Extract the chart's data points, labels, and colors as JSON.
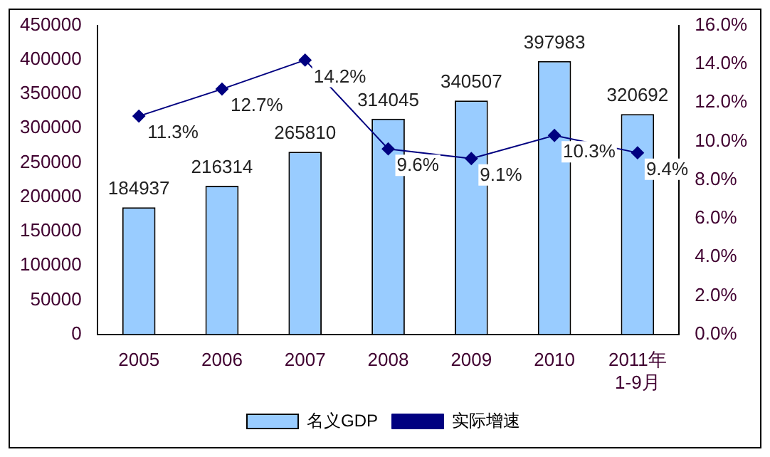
{
  "chart_data": {
    "type": "bar",
    "categories": [
      "2005",
      "2006",
      "2007",
      "2008",
      "2009",
      "2010",
      "2011年\n1-9月"
    ],
    "series": [
      {
        "name": "名义GDP",
        "color": "#99ccff",
        "values": [
          184937,
          216314,
          265810,
          314045,
          340507,
          397983,
          320692
        ]
      },
      {
        "name": "实际增速",
        "type": "line",
        "axis": "y2",
        "color": "#000080",
        "marker": "diamond",
        "values": [
          11.3,
          12.7,
          14.2,
          9.6,
          9.1,
          10.3,
          9.4
        ],
        "value_labels": [
          "11.3%",
          "12.7%",
          "14.2%",
          "9.6%",
          "9.1%",
          "10.3%",
          "9.4%"
        ]
      }
    ],
    "data_labels": true,
    "ylim": [
      0,
      450000
    ],
    "yticks": [
      0,
      50000,
      100000,
      150000,
      200000,
      250000,
      300000,
      350000,
      400000,
      450000
    ],
    "y2lim": [
      0,
      16
    ],
    "y2ticks": [
      {
        "value": 0,
        "label": "0.0%"
      },
      {
        "value": 2,
        "label": "2.0%"
      },
      {
        "value": 4,
        "label": "4.0%"
      },
      {
        "value": 6,
        "label": "6.0%"
      },
      {
        "value": 8,
        "label": "8.0%"
      },
      {
        "value": 10,
        "label": "10.0%"
      },
      {
        "value": 12,
        "label": "12.0%"
      },
      {
        "value": 14,
        "label": "14.0%"
      },
      {
        "value": 16,
        "label": "16.0%"
      }
    ],
    "grid": false,
    "legend": "bottom"
  }
}
